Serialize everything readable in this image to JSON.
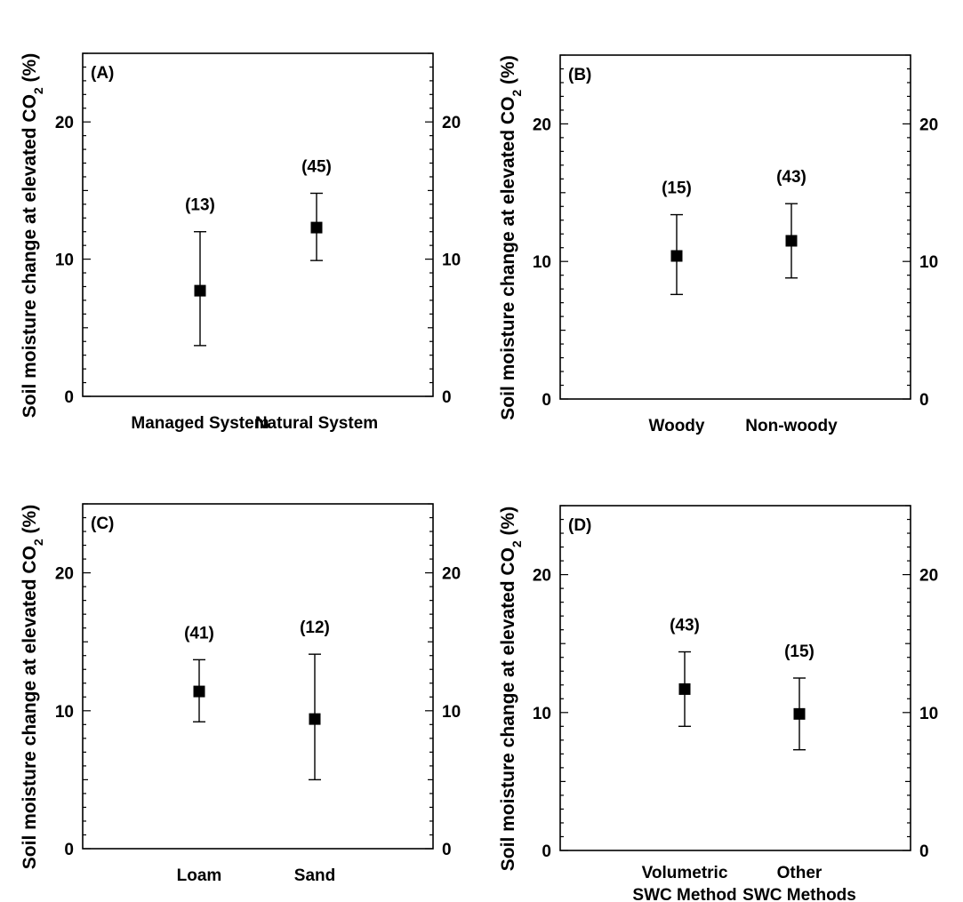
{
  "ylabel_main": "Soil moisture change at elevated CO",
  "ylabel_sub": "2",
  "ylabel_suffix": " (%)",
  "chart_data": [
    {
      "type": "scatter",
      "panel_label": "(A)",
      "ylim": [
        0,
        25
      ],
      "yticks": [
        "0",
        "10",
        "20"
      ],
      "categories": [
        [
          "Managed System"
        ],
        [
          "Natural System"
        ]
      ],
      "values": [
        7.7,
        12.3
      ],
      "lower": [
        3.7,
        9.9
      ],
      "upper": [
        12.0,
        14.8
      ],
      "counts": [
        "(13)",
        "(45)"
      ]
    },
    {
      "type": "scatter",
      "panel_label": "(B)",
      "ylim": [
        0,
        25
      ],
      "yticks": [
        "0",
        "10",
        "20"
      ],
      "categories": [
        [
          "Woody"
        ],
        [
          "Non-woody"
        ]
      ],
      "values": [
        10.4,
        11.5
      ],
      "lower": [
        7.6,
        8.8
      ],
      "upper": [
        13.4,
        14.2
      ],
      "counts": [
        "(15)",
        "(43)"
      ]
    },
    {
      "type": "scatter",
      "panel_label": "(C)",
      "ylim": [
        0,
        25
      ],
      "yticks": [
        "0",
        "10",
        "20"
      ],
      "categories": [
        [
          "Loam"
        ],
        [
          "Sand"
        ]
      ],
      "values": [
        11.4,
        9.4
      ],
      "lower": [
        9.2,
        5.0
      ],
      "upper": [
        13.7,
        14.1
      ],
      "counts": [
        "(41)",
        "(12)"
      ]
    },
    {
      "type": "scatter",
      "panel_label": "(D)",
      "ylim": [
        0,
        25
      ],
      "yticks": [
        "0",
        "10",
        "20"
      ],
      "categories": [
        [
          "Volumetric",
          "SWC Method"
        ],
        [
          "Other",
          "SWC Methods"
        ]
      ],
      "values": [
        11.7,
        9.9
      ],
      "lower": [
        9.0,
        7.3
      ],
      "upper": [
        14.4,
        12.5
      ],
      "counts": [
        "(43)",
        "(15)"
      ]
    }
  ]
}
